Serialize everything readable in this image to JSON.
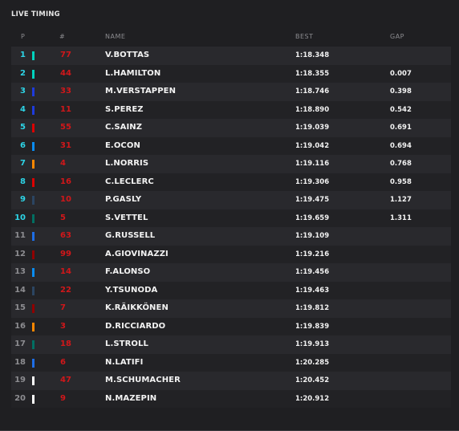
{
  "title": "LIVE TIMING",
  "columns": {
    "pos": "P",
    "num": "#",
    "name": "NAME",
    "best": "BEST",
    "gap": "GAP"
  },
  "colors": {
    "qualified_pos": "#2dd4e6",
    "eliminated_pos": "#8c8c90",
    "car_number": "#d0171a"
  },
  "rows": [
    {
      "pos": "1",
      "num": "77",
      "name": "V.BOTTAS",
      "best": "1:18.348",
      "gap": "",
      "team_color": "#00d2be"
    },
    {
      "pos": "2",
      "num": "44",
      "name": "L.HAMILTON",
      "best": "1:18.355",
      "gap": "0.007",
      "team_color": "#00d2be"
    },
    {
      "pos": "3",
      "num": "33",
      "name": "M.VERSTAPPEN",
      "best": "1:18.746",
      "gap": "0.398",
      "team_color": "#1e3bdc"
    },
    {
      "pos": "4",
      "num": "11",
      "name": "S.PEREZ",
      "best": "1:18.890",
      "gap": "0.542",
      "team_color": "#1e3bdc"
    },
    {
      "pos": "5",
      "num": "55",
      "name": "C.SAINZ",
      "best": "1:19.039",
      "gap": "0.691",
      "team_color": "#dc0000"
    },
    {
      "pos": "6",
      "num": "31",
      "name": "E.OCON",
      "best": "1:19.042",
      "gap": "0.694",
      "team_color": "#0a8cf0"
    },
    {
      "pos": "7",
      "num": "4",
      "name": "L.NORRIS",
      "best": "1:19.116",
      "gap": "0.768",
      "team_color": "#ff8700"
    },
    {
      "pos": "8",
      "num": "16",
      "name": "C.LECLERC",
      "best": "1:19.306",
      "gap": "0.958",
      "team_color": "#dc0000"
    },
    {
      "pos": "9",
      "num": "10",
      "name": "P.GASLY",
      "best": "1:19.475",
      "gap": "1.127",
      "team_color": "#2b4562"
    },
    {
      "pos": "10",
      "num": "5",
      "name": "S.VETTEL",
      "best": "1:19.659",
      "gap": "1.311",
      "team_color": "#006f62"
    },
    {
      "pos": "11",
      "num": "63",
      "name": "G.RUSSELL",
      "best": "1:19.109",
      "gap": "",
      "team_color": "#1e6ee6"
    },
    {
      "pos": "12",
      "num": "99",
      "name": "A.GIOVINAZZI",
      "best": "1:19.216",
      "gap": "",
      "team_color": "#900000"
    },
    {
      "pos": "13",
      "num": "14",
      "name": "F.ALONSO",
      "best": "1:19.456",
      "gap": "",
      "team_color": "#0a8cf0"
    },
    {
      "pos": "14",
      "num": "22",
      "name": "Y.TSUNODA",
      "best": "1:19.463",
      "gap": "",
      "team_color": "#2b4562"
    },
    {
      "pos": "15",
      "num": "7",
      "name": "K.RÄIKKÖNEN",
      "best": "1:19.812",
      "gap": "",
      "team_color": "#900000"
    },
    {
      "pos": "16",
      "num": "3",
      "name": "D.RICCIARDO",
      "best": "1:19.839",
      "gap": "",
      "team_color": "#ff8700"
    },
    {
      "pos": "17",
      "num": "18",
      "name": "L.STROLL",
      "best": "1:19.913",
      "gap": "",
      "team_color": "#006f62"
    },
    {
      "pos": "18",
      "num": "6",
      "name": "N.LATIFI",
      "best": "1:20.285",
      "gap": "",
      "team_color": "#1e6ee6"
    },
    {
      "pos": "19",
      "num": "47",
      "name": "M.SCHUMACHER",
      "best": "1:20.452",
      "gap": "",
      "team_color": "#ffffff"
    },
    {
      "pos": "20",
      "num": "9",
      "name": "N.MAZEPIN",
      "best": "1:20.912",
      "gap": "",
      "team_color": "#ffffff"
    }
  ]
}
